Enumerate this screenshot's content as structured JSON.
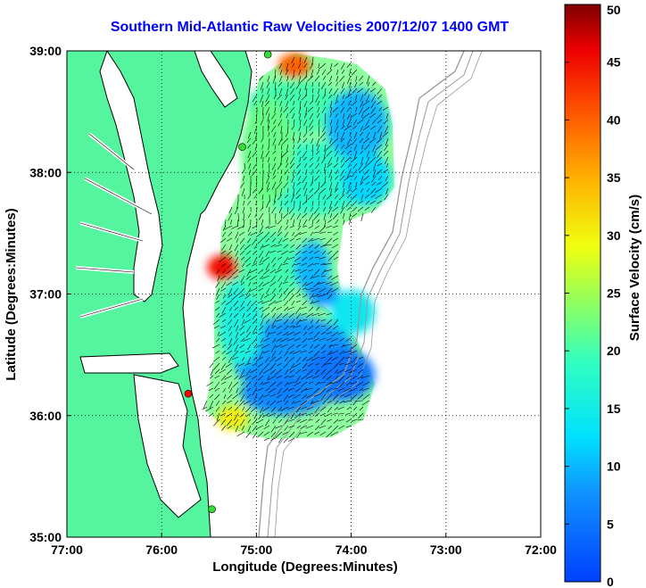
{
  "title": "Southern Mid-Atlantic Raw Velocities 2007/12/07 1400 GMT",
  "x_axis": {
    "label": "Longitude (Degrees:Minutes)",
    "ticks": [
      "77:00",
      "76:00",
      "75:00",
      "74:00",
      "73:00",
      "72:00"
    ]
  },
  "y_axis": {
    "label": "Latitude (Degrees:Minutes)",
    "ticks": [
      "39:00",
      "38:00",
      "37:00",
      "36:00",
      "35:00"
    ]
  },
  "colorbar": {
    "label": "Surface Velocity (cm/s)",
    "ticks": [
      "50",
      "45",
      "40",
      "35",
      "30",
      "25",
      "20",
      "15",
      "10",
      "5",
      "0"
    ],
    "range": [
      0,
      50
    ],
    "colormap": "jet"
  },
  "colors": {
    "land": "#55f5a0",
    "ocean": "#ffffff",
    "coastline": "#000000",
    "bathymetry": "#999999",
    "title": "#0000ff",
    "station_active": "#33dd33",
    "station_alert": "#ff0000"
  },
  "stations": [
    {
      "lon": -74.88,
      "lat": 38.97,
      "color": "green"
    },
    {
      "lon": -75.15,
      "lat": 38.21,
      "color": "green"
    },
    {
      "lon": -75.72,
      "lat": 36.18,
      "color": "red"
    },
    {
      "lon": -75.47,
      "lat": 35.23,
      "color": "green"
    }
  ],
  "velocity_field": {
    "hotspots": [
      {
        "lon": -75.35,
        "lat": 37.22,
        "speed": 45
      },
      {
        "lon": -74.6,
        "lat": 38.88,
        "speed": 40
      },
      {
        "lon": -75.25,
        "lat": 35.98,
        "speed": 30
      },
      {
        "lon": -74.7,
        "lat": 36.25,
        "speed": 6
      },
      {
        "lon": -74.3,
        "lat": 37.0,
        "speed": 8
      }
    ]
  }
}
